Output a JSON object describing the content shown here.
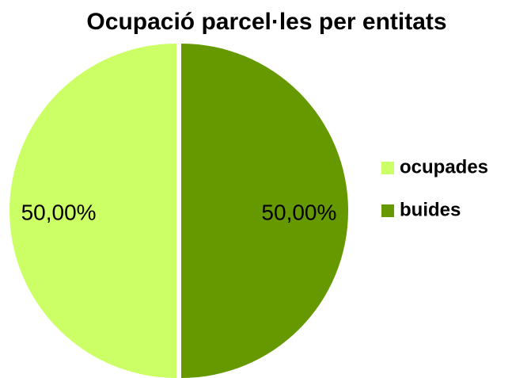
{
  "chart_data": {
    "type": "pie",
    "title": "Ocupació parcel·les per entitats",
    "categories": [
      "ocupades",
      "buides"
    ],
    "values": [
      50,
      50
    ],
    "value_labels": [
      "50,00%",
      "50,00%"
    ],
    "colors": [
      "#ccff66",
      "#669900"
    ],
    "legend": "right"
  }
}
